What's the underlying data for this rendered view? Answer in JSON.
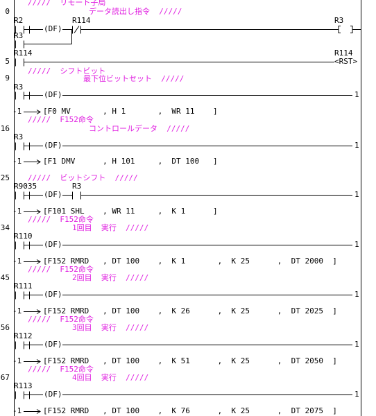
{
  "blocks": [
    {
      "comment": [
        "/////  リモート子局",
        "データ読出し指令  /////"
      ],
      "step": "0",
      "contacts": [
        "R2",
        "R114"
      ],
      "branch_contact": "R3",
      "df": "(DF)",
      "coil": "R3"
    },
    {
      "step": "5",
      "contacts": [
        "R114"
      ],
      "coil": "R114",
      "coil_text": "<RST>"
    },
    {
      "comment": [
        "/////  シフトビット",
        "最下位ビットセット  /////"
      ],
      "step": "9",
      "contacts": [
        "R3"
      ],
      "df": "(DF)",
      "end": "1",
      "next": "-1",
      "instruction": "[F0 MV       , H 1       ,  WR 11    ]"
    },
    {
      "comment": [
        "/////  F152命令",
        "コントロールデータ  /////"
      ],
      "step": "16",
      "contacts": [
        "R3"
      ],
      "df": "(DF)",
      "end": "1",
      "next": "-1",
      "instruction": "[F1 DMV      , H 101     ,  DT 100   ]"
    },
    {
      "comment": [
        "/////  ビットシフト  /////"
      ],
      "step": "25",
      "contacts": [
        "R9035",
        "R3"
      ],
      "df": "(DF)",
      "end": "1",
      "next": "-1",
      "instruction": "[F101 SHL    , WR 11     ,  K 1      ]"
    },
    {
      "comment": [
        "/////  F152命令",
        "1回目  実行  /////"
      ],
      "step": "34",
      "contacts": [
        "R110"
      ],
      "df": "(DF)",
      "end": "1",
      "next": "-1",
      "instruction": "[F152 RMRD   , DT 100    ,  K 1       ,  K 25      ,  DT 2000  ]"
    },
    {
      "comment": [
        "/////  F152命令",
        "2回目  実行  /////"
      ],
      "step": "45",
      "contacts": [
        "R111"
      ],
      "df": "(DF)",
      "end": "1",
      "next": "-1",
      "instruction": "[F152 RMRD   , DT 100    ,  K 26      ,  K 25      ,  DT 2025  ]"
    },
    {
      "comment": [
        "/////  F152命令",
        "3回目  実行  /////"
      ],
      "step": "56",
      "contacts": [
        "R112"
      ],
      "df": "(DF)",
      "end": "1",
      "next": "-1",
      "instruction": "[F152 RMRD   , DT 100    ,  K 51      ,  K 25      ,  DT 2050  ]"
    },
    {
      "comment": [
        "/////  F152命令",
        "4回目  実行  /////"
      ],
      "step": "67",
      "contacts": [
        "R113"
      ],
      "df": "(DF)",
      "end": "1",
      "next": "-1",
      "instruction": "[F152 RMRD   , DT 100    ,  K 76      ,  K 25      ,  DT 2075  ]"
    }
  ]
}
